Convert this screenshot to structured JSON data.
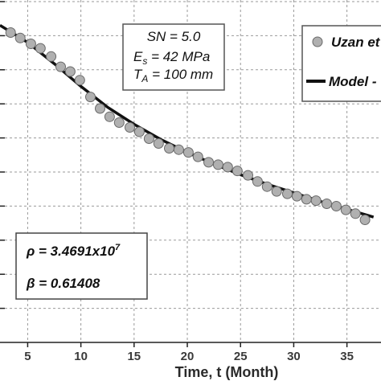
{
  "chart_data": {
    "type": "scatter",
    "xlabel": "Time, t (Month)",
    "ylabel": "",
    "x_ticks": [
      5,
      10,
      15,
      20,
      25,
      30,
      35
    ],
    "xlim": [
      2.4,
      38.2
    ],
    "ylim": [
      0,
      1
    ],
    "grid": true,
    "legend_position": "top-right",
    "parameters_box": {
      "line1": "SN = 5.0",
      "line2_main": "E",
      "line2_sub": "s",
      "line2_rest": " = 42 MPa",
      "line3_main": "T",
      "line3_sub": "A",
      "line3_rest": " = 100 mm"
    },
    "fit_box": {
      "rho_text": "ρ = 3.4691x10",
      "rho_exponent": "7",
      "beta_text": "β = 0.61408"
    },
    "series": [
      {
        "name": "Uzan et",
        "style": "markers",
        "color": "#b0b0b0",
        "x": [
          3.4,
          4.3,
          5.3,
          6.2,
          7.2,
          8.1,
          9.0,
          9.9,
          10.9,
          11.8,
          12.7,
          13.6,
          14.6,
          15.5,
          16.4,
          17.3,
          18.3,
          19.2,
          20.1,
          21.0,
          22.0,
          22.9,
          23.8,
          24.7,
          25.7,
          26.6,
          27.5,
          28.4,
          29.4,
          30.3,
          31.2,
          32.1,
          33.1,
          34.0,
          34.9,
          35.8,
          36.7
        ],
        "y": [
          0.905,
          0.889,
          0.872,
          0.859,
          0.835,
          0.805,
          0.791,
          0.766,
          0.717,
          0.683,
          0.659,
          0.642,
          0.628,
          0.615,
          0.595,
          0.581,
          0.567,
          0.563,
          0.555,
          0.542,
          0.526,
          0.519,
          0.512,
          0.501,
          0.488,
          0.47,
          0.455,
          0.441,
          0.434,
          0.427,
          0.418,
          0.414,
          0.405,
          0.398,
          0.387,
          0.376,
          0.358
        ]
      },
      {
        "name": "Model -",
        "style": "line",
        "color": "#111111",
        "x": [
          2.4,
          5,
          7.5,
          10,
          12.5,
          15,
          17.5,
          20,
          22.5,
          25,
          27.5,
          30,
          32.5,
          35,
          37.5
        ],
        "y": [
          0.926,
          0.876,
          0.814,
          0.748,
          0.687,
          0.637,
          0.593,
          0.555,
          0.521,
          0.49,
          0.462,
          0.437,
          0.412,
          0.389,
          0.366
        ]
      }
    ]
  }
}
